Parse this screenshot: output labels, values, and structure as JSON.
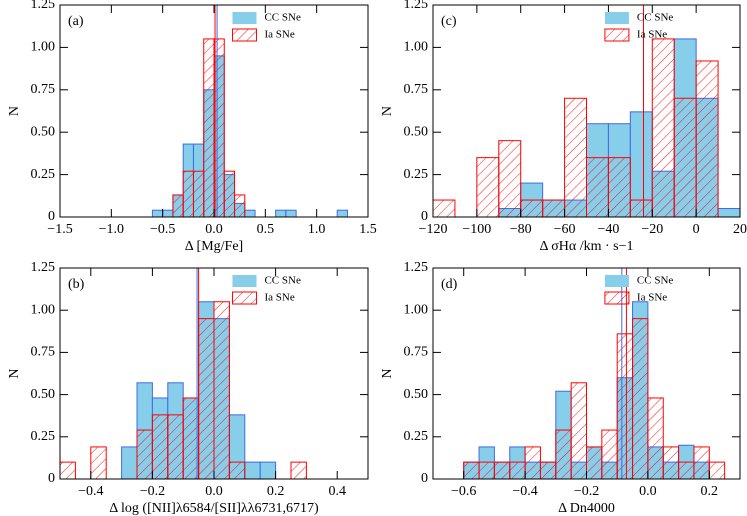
{
  "chart_data": [
    {
      "type": "histogram",
      "panel_label": "(a)",
      "x_label": "Δ [Mg/Fe]",
      "y_label": "N",
      "bins": [
        -0.6,
        -0.5,
        -0.4,
        -0.3,
        -0.2,
        -0.1,
        0,
        0.1,
        0.2,
        0.3,
        0.4,
        0.5,
        0.6,
        0.7,
        0.8,
        0.9,
        1.0,
        1.1,
        1.2,
        1.3,
        1.4
      ],
      "series": [
        {
          "name": "CC SNe",
          "color": "#87ceeb",
          "edge": "#4169e1",
          "median": 0.03,
          "values": [
            0.04,
            0.04,
            0.13,
            0.43,
            0.43,
            0.75,
            0.95,
            0.25,
            0.08,
            0.04,
            0,
            0,
            0.04,
            0.04,
            0,
            0,
            0,
            0,
            0.04,
            0
          ]
        },
        {
          "name": "Ia SNe",
          "color": "#ff0000",
          "median": 0.01,
          "values": [
            0,
            0,
            0.13,
            0.27,
            0.27,
            1.05,
            1.05,
            0.27,
            0.13,
            0,
            0,
            0,
            0,
            0,
            0,
            0,
            0,
            0,
            0,
            0
          ]
        }
      ],
      "xlim": [
        -1.5,
        1.5
      ],
      "xticks": [
        {
          "value": -1.5,
          "label": "−1.5"
        },
        {
          "value": -1,
          "label": "−1.0"
        },
        {
          "value": -0.5,
          "label": "−0.5"
        },
        {
          "value": 0,
          "label": "0.0"
        },
        0.5,
        {
          "value": 1,
          "label": "1.0"
        },
        1.5
      ],
      "ylim": [
        0,
        1.25
      ],
      "yticks": [
        0,
        0.25,
        {
          "value": 0.5,
          "label": "0.50"
        },
        0.75,
        {
          "value": 1,
          "label": "1.00"
        },
        1.25
      ]
    },
    {
      "type": "histogram",
      "panel_label": "(b)",
      "x_label": "Δ log ([NII]λ6584/[SII]λλ6731,6717)",
      "y_label": "N",
      "bins": [
        -0.5,
        -0.45,
        -0.4,
        -0.35,
        -0.3,
        -0.25,
        -0.2,
        -0.15,
        -0.1,
        -0.05,
        0,
        0.05,
        0.1,
        0.15,
        0.2,
        0.25,
        0.3,
        0.35,
        0.4,
        0.45,
        0.5
      ],
      "series": [
        {
          "name": "CC SNe",
          "color": "#87ceeb",
          "edge": "#4169e1",
          "median": -0.055,
          "values": [
            0,
            0,
            0,
            0,
            0.19,
            0.57,
            0.48,
            0.57,
            0.48,
            1.05,
            0.95,
            0.38,
            0.1,
            0.1,
            0,
            0,
            0,
            0,
            0,
            0
          ]
        },
        {
          "name": "Ia SNe",
          "color": "#ff0000",
          "median": -0.05,
          "values": [
            0.1,
            0,
            0.19,
            0,
            0,
            0.29,
            0.38,
            0.38,
            0.48,
            0.95,
            1.05,
            0.1,
            0,
            0,
            0,
            0.1,
            0,
            0,
            0,
            0
          ]
        }
      ],
      "xlim": [
        -0.5,
        0.5
      ],
      "xticks": [
        {
          "value": -0.4,
          "label": "−0.4"
        },
        {
          "value": -0.2,
          "label": "−0.2"
        },
        {
          "value": 0,
          "label": "0.0"
        },
        0.2,
        0.4
      ],
      "ylim": [
        0,
        1.25
      ],
      "yticks": [
        0,
        0.25,
        {
          "value": 0.5,
          "label": "0.50"
        },
        0.75,
        {
          "value": 1,
          "label": "1.00"
        },
        1.25
      ]
    },
    {
      "type": "histogram",
      "panel_label": "(c)",
      "x_label": "Δ σHα /km · s−1",
      "y_label": "N",
      "bins": [
        -120,
        -110,
        -100,
        -90,
        -80,
        -70,
        -60,
        -50,
        -40,
        -30,
        -20,
        -10,
        0,
        10,
        20
      ],
      "series": [
        {
          "name": "CC SNe",
          "color": "#87ceeb",
          "edge": "#4169e1",
          "median": -24,
          "values": [
            0,
            0,
            0,
            0.05,
            0.2,
            0.1,
            0.1,
            0.55,
            0.55,
            0.62,
            0.27,
            1.05,
            0.7,
            0.05
          ]
        },
        {
          "name": "Ia SNe",
          "color": "#ff0000",
          "median": -24,
          "values": [
            0.1,
            0,
            0.35,
            0.45,
            0.1,
            0.1,
            0.7,
            0.35,
            0.35,
            0.1,
            1.05,
            0.7,
            0.92,
            0
          ]
        }
      ],
      "xlim": [
        -120,
        20
      ],
      "xticks": [
        {
          "value": -120,
          "label": "−120"
        },
        {
          "value": -100,
          "label": "−100"
        },
        {
          "value": -80,
          "label": "−80"
        },
        {
          "value": -60,
          "label": "−60"
        },
        {
          "value": -40,
          "label": "−40"
        },
        {
          "value": -20,
          "label": "−20"
        },
        0,
        20
      ],
      "ylim": [
        0,
        1.25
      ],
      "yticks": [
        0,
        0.25,
        {
          "value": 0.5,
          "label": "0.50"
        },
        0.75,
        {
          "value": 1,
          "label": "1.00"
        },
        1.25
      ]
    },
    {
      "type": "histogram",
      "panel_label": "(d)",
      "x_label": "Δ Dn4000",
      "y_label": "N",
      "bins": [
        -0.6,
        -0.55,
        -0.5,
        -0.45,
        -0.4,
        -0.35,
        -0.3,
        -0.25,
        -0.2,
        -0.15,
        -0.1,
        -0.05,
        0,
        0.05,
        0.1,
        0.15,
        0.2,
        0.25,
        0.3
      ],
      "series": [
        {
          "name": "CC SNe",
          "color": "#87ceeb",
          "edge": "#4169e1",
          "median": -0.085,
          "values": [
            0.1,
            0.19,
            0.1,
            0.19,
            0.1,
            0.1,
            0.52,
            0.1,
            0.19,
            0.1,
            0.6,
            1.05,
            0.19,
            0.1,
            0.2,
            0.1,
            0,
            0
          ]
        },
        {
          "name": "Ia SNe",
          "color": "#ff0000",
          "median": -0.07,
          "values": [
            0.1,
            0.1,
            0.1,
            0.1,
            0.19,
            0.1,
            0.29,
            0.57,
            0.19,
            0.29,
            0.86,
            0.95,
            0.48,
            0.19,
            0.1,
            0.19,
            0.1,
            0
          ]
        }
      ],
      "xlim": [
        -0.7,
        0.3
      ],
      "xticks": [
        {
          "value": -0.6,
          "label": "−0.6"
        },
        {
          "value": -0.4,
          "label": "−0.4"
        },
        {
          "value": -0.2,
          "label": "−0.2"
        },
        {
          "value": 0,
          "label": "0.0"
        },
        0.2
      ],
      "ylim": [
        0,
        1.25
      ],
      "yticks": [
        0,
        0.25,
        {
          "value": 0.5,
          "label": "0.50"
        },
        0.75,
        {
          "value": 1,
          "label": "1.00"
        },
        1.25
      ]
    }
  ]
}
